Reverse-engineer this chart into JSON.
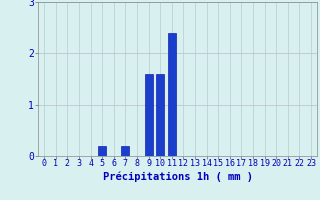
{
  "hours": [
    0,
    1,
    2,
    3,
    4,
    5,
    6,
    7,
    8,
    9,
    10,
    11,
    12,
    13,
    14,
    15,
    16,
    17,
    18,
    19,
    20,
    21,
    22,
    23
  ],
  "values": [
    0,
    0,
    0,
    0,
    0,
    0.2,
    0,
    0.2,
    0,
    1.6,
    1.6,
    2.4,
    0,
    0,
    0,
    0,
    0,
    0,
    0,
    0,
    0,
    0,
    0,
    0
  ],
  "bar_color": "#1a3fcc",
  "bar_edge_color": "#0000aa",
  "background_color": "#d8f0f0",
  "grid_color_h": "#bbbbcc",
  "grid_color_v": "#bbcccc",
  "xlabel": "Précipitations 1h ( mm )",
  "xlabel_color": "#0000bb",
  "xlabel_fontsize": 7.5,
  "tick_color": "#0000bb",
  "tick_fontsize": 6,
  "ytick_color": "#0000bb",
  "ytick_fontsize": 7,
  "ylim": [
    0,
    3
  ],
  "yticks": [
    0,
    1,
    2,
    3
  ],
  "xlim": [
    -0.5,
    23.5
  ]
}
